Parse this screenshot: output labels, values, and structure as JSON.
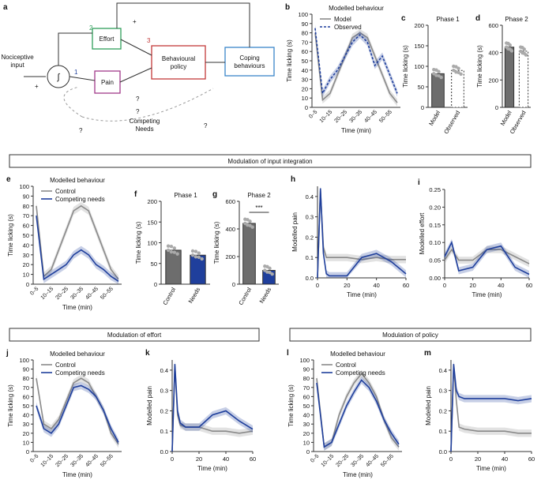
{
  "colors": {
    "control": "#8a8a8a",
    "needs": "#1f3f9c",
    "effort_box": "#2f9e5a",
    "pain_box": "#a23a8a",
    "policy_box": "#c23a3a",
    "coping_box": "#3a85c9",
    "bar_dark": "#6d6d6d",
    "bar_light": "#bdbdbd"
  },
  "diagram": {
    "panel": "a",
    "nociceptive": "Nociceptive\ninput",
    "integrator": "∫",
    "effort": "Effort",
    "effort_num": "2",
    "pain": "Pain",
    "pain_num": "1",
    "policy": "Behavioural\npolicy",
    "policy_num": "3",
    "coping": "Coping\nbehaviours",
    "competing": "Competing\nNeeds",
    "plus": "+",
    "question": "?"
  },
  "sections": {
    "input": "Modulation of input integration",
    "effort": "Modulation of effort",
    "policy": "Modulation of policy"
  },
  "chart_data": [
    {
      "panel": "b",
      "type": "line",
      "title": "Modelled behaviour",
      "xlabel": "Time (min)",
      "ylabel": "Time licking (s)",
      "categories": [
        "0–5",
        "5–10",
        "10–15",
        "15–20",
        "20–25",
        "25–30",
        "30–35",
        "35–40",
        "40–45",
        "45–50",
        "50–55",
        "55–60"
      ],
      "ylim": [
        0,
        100
      ],
      "yticks": [
        0,
        10,
        20,
        30,
        40,
        50,
        60,
        70,
        80,
        90,
        100
      ],
      "series": [
        {
          "name": "Model",
          "values": [
            80,
            8,
            15,
            35,
            55,
            75,
            80,
            75,
            55,
            35,
            15,
            5
          ]
        },
        {
          "name": "Observed",
          "values": [
            85,
            15,
            30,
            40,
            55,
            70,
            78,
            70,
            45,
            55,
            35,
            15
          ]
        }
      ]
    },
    {
      "panel": "c",
      "type": "bar",
      "title": "Phase 1",
      "ylabel": "Time licking (s)",
      "categories": [
        "Model",
        "Observed"
      ],
      "values": [
        82,
        90
      ],
      "ylim": [
        0,
        200
      ]
    },
    {
      "panel": "d",
      "type": "bar",
      "title": "Phase 2",
      "ylabel": "Time licking (s)",
      "categories": [
        "Model",
        "Observed"
      ],
      "values": [
        440,
        410
      ],
      "ylim": [
        0,
        600
      ]
    },
    {
      "panel": "e",
      "type": "line",
      "title": "Modelled behaviour",
      "xlabel": "Time (min)",
      "ylabel": "Time licking (s)",
      "categories": [
        "0–5",
        "5–10",
        "10–15",
        "15–20",
        "20–25",
        "25–30",
        "30–35",
        "35–40",
        "40–45",
        "45–50",
        "50–55",
        "55–60"
      ],
      "ylim": [
        0,
        100
      ],
      "yticks": [
        0,
        10,
        20,
        30,
        40,
        50,
        60,
        70,
        80,
        90,
        100
      ],
      "series": [
        {
          "name": "Control",
          "values": [
            80,
            8,
            15,
            35,
            55,
            75,
            80,
            75,
            55,
            35,
            15,
            5
          ]
        },
        {
          "name": "Competing needs",
          "values": [
            70,
            5,
            10,
            15,
            20,
            30,
            35,
            30,
            20,
            15,
            8,
            3
          ]
        }
      ]
    },
    {
      "panel": "f",
      "type": "bar",
      "title": "Phase 1",
      "ylabel": "Time licking (s)",
      "categories": [
        "Control",
        "Needs"
      ],
      "values": [
        82,
        70
      ],
      "ylim": [
        0,
        200
      ]
    },
    {
      "panel": "g",
      "type": "bar",
      "title": "Phase 2",
      "ylabel": "Time licking (s)",
      "categories": [
        "Control",
        "Needs"
      ],
      "values": [
        440,
        100
      ],
      "ylim": [
        0,
        600
      ],
      "annotation": "***"
    },
    {
      "panel": "h",
      "type": "line",
      "xlabel": "Time (min)",
      "ylabel": "Modelled pain",
      "ylim": [
        0,
        0.45
      ],
      "xlim": [
        0,
        60
      ],
      "series": [
        {
          "name": "Control",
          "x": [
            0,
            2,
            4,
            6,
            8,
            12,
            20,
            30,
            40,
            50,
            60
          ],
          "values": [
            0,
            0.43,
            0.15,
            0.1,
            0.1,
            0.1,
            0.1,
            0.09,
            0.1,
            0.09,
            0.09
          ]
        },
        {
          "name": "Competing needs",
          "x": [
            0,
            2,
            4,
            6,
            8,
            12,
            20,
            30,
            40,
            50,
            60
          ],
          "values": [
            0,
            0.44,
            0.12,
            0.02,
            0.01,
            0.01,
            0.01,
            0.1,
            0.12,
            0.08,
            0.02
          ]
        }
      ]
    },
    {
      "panel": "i",
      "type": "line",
      "xlabel": "Time (min)",
      "ylabel": "Modelled effort",
      "ylim": [
        0,
        0.25
      ],
      "xlim": [
        0,
        60
      ],
      "series": [
        {
          "name": "Control",
          "x": [
            0,
            5,
            10,
            20,
            30,
            40,
            50,
            60
          ],
          "values": [
            0.05,
            0.08,
            0.05,
            0.05,
            0.08,
            0.08,
            0.06,
            0.04
          ]
        },
        {
          "name": "Competing needs",
          "x": [
            0,
            5,
            10,
            20,
            30,
            40,
            50,
            60
          ],
          "values": [
            0.06,
            0.1,
            0.02,
            0.03,
            0.08,
            0.09,
            0.03,
            0.01
          ]
        }
      ]
    },
    {
      "panel": "j",
      "type": "line",
      "title": "Modelled behaviour",
      "xlabel": "Time (min)",
      "ylabel": "Time licking (s)",
      "categories": [
        "0–5",
        "5–10",
        "10–15",
        "15–20",
        "20–25",
        "25–30",
        "30–35",
        "35–40",
        "40–45",
        "45–50",
        "50–55",
        "55–60"
      ],
      "ylim": [
        0,
        100
      ],
      "yticks": [
        0,
        10,
        20,
        30,
        40,
        50,
        60,
        70,
        80,
        90,
        100
      ],
      "series": [
        {
          "name": "Control",
          "values": [
            80,
            30,
            25,
            35,
            55,
            75,
            80,
            75,
            60,
            45,
            20,
            8
          ]
        },
        {
          "name": "Competing needs",
          "values": [
            50,
            25,
            20,
            30,
            50,
            70,
            72,
            68,
            60,
            45,
            25,
            10
          ]
        }
      ]
    },
    {
      "panel": "k",
      "type": "line",
      "xlabel": "Time (min)",
      "ylabel": "Modelled pain",
      "ylim": [
        0,
        0.45
      ],
      "xlim": [
        0,
        60
      ],
      "series": [
        {
          "name": "Control",
          "x": [
            0,
            2,
            4,
            6,
            10,
            20,
            30,
            40,
            50,
            60
          ],
          "values": [
            0,
            0.42,
            0.18,
            0.13,
            0.12,
            0.12,
            0.1,
            0.1,
            0.09,
            0.1
          ]
        },
        {
          "name": "Competing needs",
          "x": [
            0,
            2,
            4,
            6,
            10,
            20,
            30,
            40,
            50,
            60
          ],
          "values": [
            0,
            0.43,
            0.2,
            0.14,
            0.12,
            0.12,
            0.18,
            0.2,
            0.15,
            0.11
          ]
        }
      ]
    },
    {
      "panel": "l",
      "type": "line",
      "title": "Modelled behaviour",
      "xlabel": "Time (min)",
      "ylabel": "Time licking (s)",
      "categories": [
        "0–5",
        "5–10",
        "10–15",
        "15–20",
        "20–25",
        "25–30",
        "30–35",
        "35–40",
        "40–45",
        "45–50",
        "50–55",
        "55–60"
      ],
      "ylim": [
        0,
        100
      ],
      "yticks": [
        0,
        10,
        20,
        30,
        40,
        50,
        60,
        70,
        80,
        90,
        100
      ],
      "series": [
        {
          "name": "Control",
          "values": [
            80,
            5,
            10,
            40,
            60,
            75,
            85,
            75,
            60,
            35,
            15,
            5
          ]
        },
        {
          "name": "Competing needs",
          "values": [
            75,
            5,
            10,
            30,
            50,
            65,
            78,
            70,
            55,
            35,
            20,
            8
          ]
        }
      ]
    },
    {
      "panel": "m",
      "type": "line",
      "xlabel": "Time (min)",
      "ylabel": "Modelled pain",
      "ylim": [
        0,
        0.45
      ],
      "xlim": [
        0,
        60
      ],
      "series": [
        {
          "name": "Control",
          "x": [
            0,
            2,
            4,
            6,
            10,
            20,
            30,
            40,
            50,
            60
          ],
          "values": [
            0,
            0.42,
            0.25,
            0.12,
            0.11,
            0.1,
            0.1,
            0.1,
            0.09,
            0.09
          ]
        },
        {
          "name": "Competing needs",
          "x": [
            0,
            2,
            4,
            6,
            10,
            20,
            30,
            40,
            50,
            60
          ],
          "values": [
            0,
            0.43,
            0.3,
            0.27,
            0.26,
            0.26,
            0.26,
            0.26,
            0.25,
            0.26
          ]
        }
      ]
    }
  ]
}
